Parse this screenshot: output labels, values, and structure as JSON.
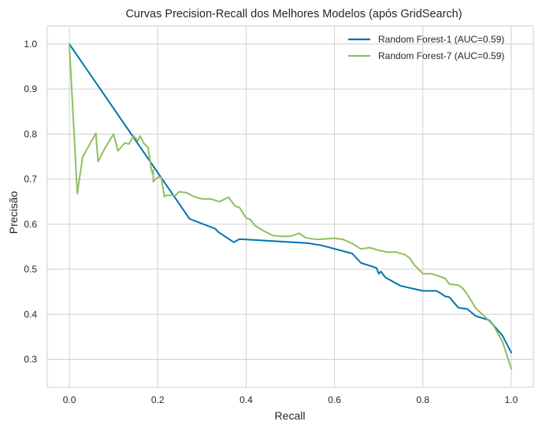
{
  "chart_data": {
    "type": "line",
    "title": "Curvas Precision-Recall dos Melhores Modelos (após GridSearch)",
    "xlabel": "Recall",
    "ylabel": "Precisão",
    "xlim": [
      -0.05,
      1.05
    ],
    "ylim": [
      0.238,
      1.04
    ],
    "xticks": [
      0.0,
      0.2,
      0.4,
      0.6,
      0.8,
      1.0
    ],
    "xtick_labels": [
      "0.0",
      "0.2",
      "0.4",
      "0.6",
      "0.8",
      "1.0"
    ],
    "yticks": [
      0.3,
      0.4,
      0.5,
      0.6,
      0.7,
      0.8,
      0.9,
      1.0
    ],
    "ytick_labels": [
      "0.3",
      "0.4",
      "0.5",
      "0.6",
      "0.7",
      "0.8",
      "0.9",
      "1.0"
    ],
    "grid": true,
    "legend_position": "top-right",
    "series": [
      {
        "name": "Random Forest-1 (AUC=0.59)",
        "color": "#0173b2",
        "x": [
          0.0,
          0.272,
          0.33,
          0.338,
          0.372,
          0.385,
          0.54,
          0.57,
          0.64,
          0.66,
          0.695,
          0.7,
          0.705,
          0.715,
          0.75,
          0.8,
          0.83,
          0.84,
          0.85,
          0.86,
          0.88,
          0.89,
          0.9,
          0.92,
          0.95,
          0.98,
          1.0
        ],
        "y": [
          1.0,
          0.612,
          0.59,
          0.582,
          0.56,
          0.567,
          0.558,
          0.553,
          0.535,
          0.514,
          0.503,
          0.49,
          0.495,
          0.482,
          0.463,
          0.452,
          0.452,
          0.447,
          0.44,
          0.438,
          0.415,
          0.413,
          0.412,
          0.396,
          0.387,
          0.353,
          0.315
        ]
      },
      {
        "name": "Random Forest-7 (AUC=0.59)",
        "color": "#8fbf60",
        "x": [
          0.0,
          0.018,
          0.03,
          0.06,
          0.065,
          0.08,
          0.1,
          0.11,
          0.125,
          0.135,
          0.145,
          0.155,
          0.16,
          0.168,
          0.178,
          0.185,
          0.188,
          0.19,
          0.19,
          0.195,
          0.2,
          0.208,
          0.215,
          0.22,
          0.24,
          0.248,
          0.265,
          0.28,
          0.3,
          0.32,
          0.34,
          0.36,
          0.375,
          0.385,
          0.4,
          0.41,
          0.42,
          0.44,
          0.46,
          0.48,
          0.5,
          0.52,
          0.535,
          0.56,
          0.6,
          0.62,
          0.64,
          0.66,
          0.68,
          0.7,
          0.72,
          0.74,
          0.76,
          0.77,
          0.78,
          0.8,
          0.82,
          0.85,
          0.86,
          0.88,
          0.89,
          0.9,
          0.92,
          0.94,
          0.96,
          0.98,
          1.0
        ],
        "y": [
          1.0,
          0.668,
          0.749,
          0.802,
          0.739,
          0.768,
          0.8,
          0.763,
          0.78,
          0.778,
          0.796,
          0.785,
          0.796,
          0.78,
          0.77,
          0.725,
          0.712,
          0.72,
          0.694,
          0.7,
          0.704,
          0.704,
          0.661,
          0.664,
          0.664,
          0.672,
          0.67,
          0.662,
          0.656,
          0.656,
          0.65,
          0.66,
          0.64,
          0.637,
          0.614,
          0.61,
          0.597,
          0.585,
          0.575,
          0.573,
          0.573,
          0.58,
          0.57,
          0.566,
          0.569,
          0.566,
          0.557,
          0.545,
          0.548,
          0.542,
          0.538,
          0.538,
          0.532,
          0.525,
          0.51,
          0.49,
          0.49,
          0.48,
          0.467,
          0.465,
          0.458,
          0.445,
          0.413,
          0.395,
          0.375,
          0.34,
          0.279
        ]
      }
    ]
  }
}
